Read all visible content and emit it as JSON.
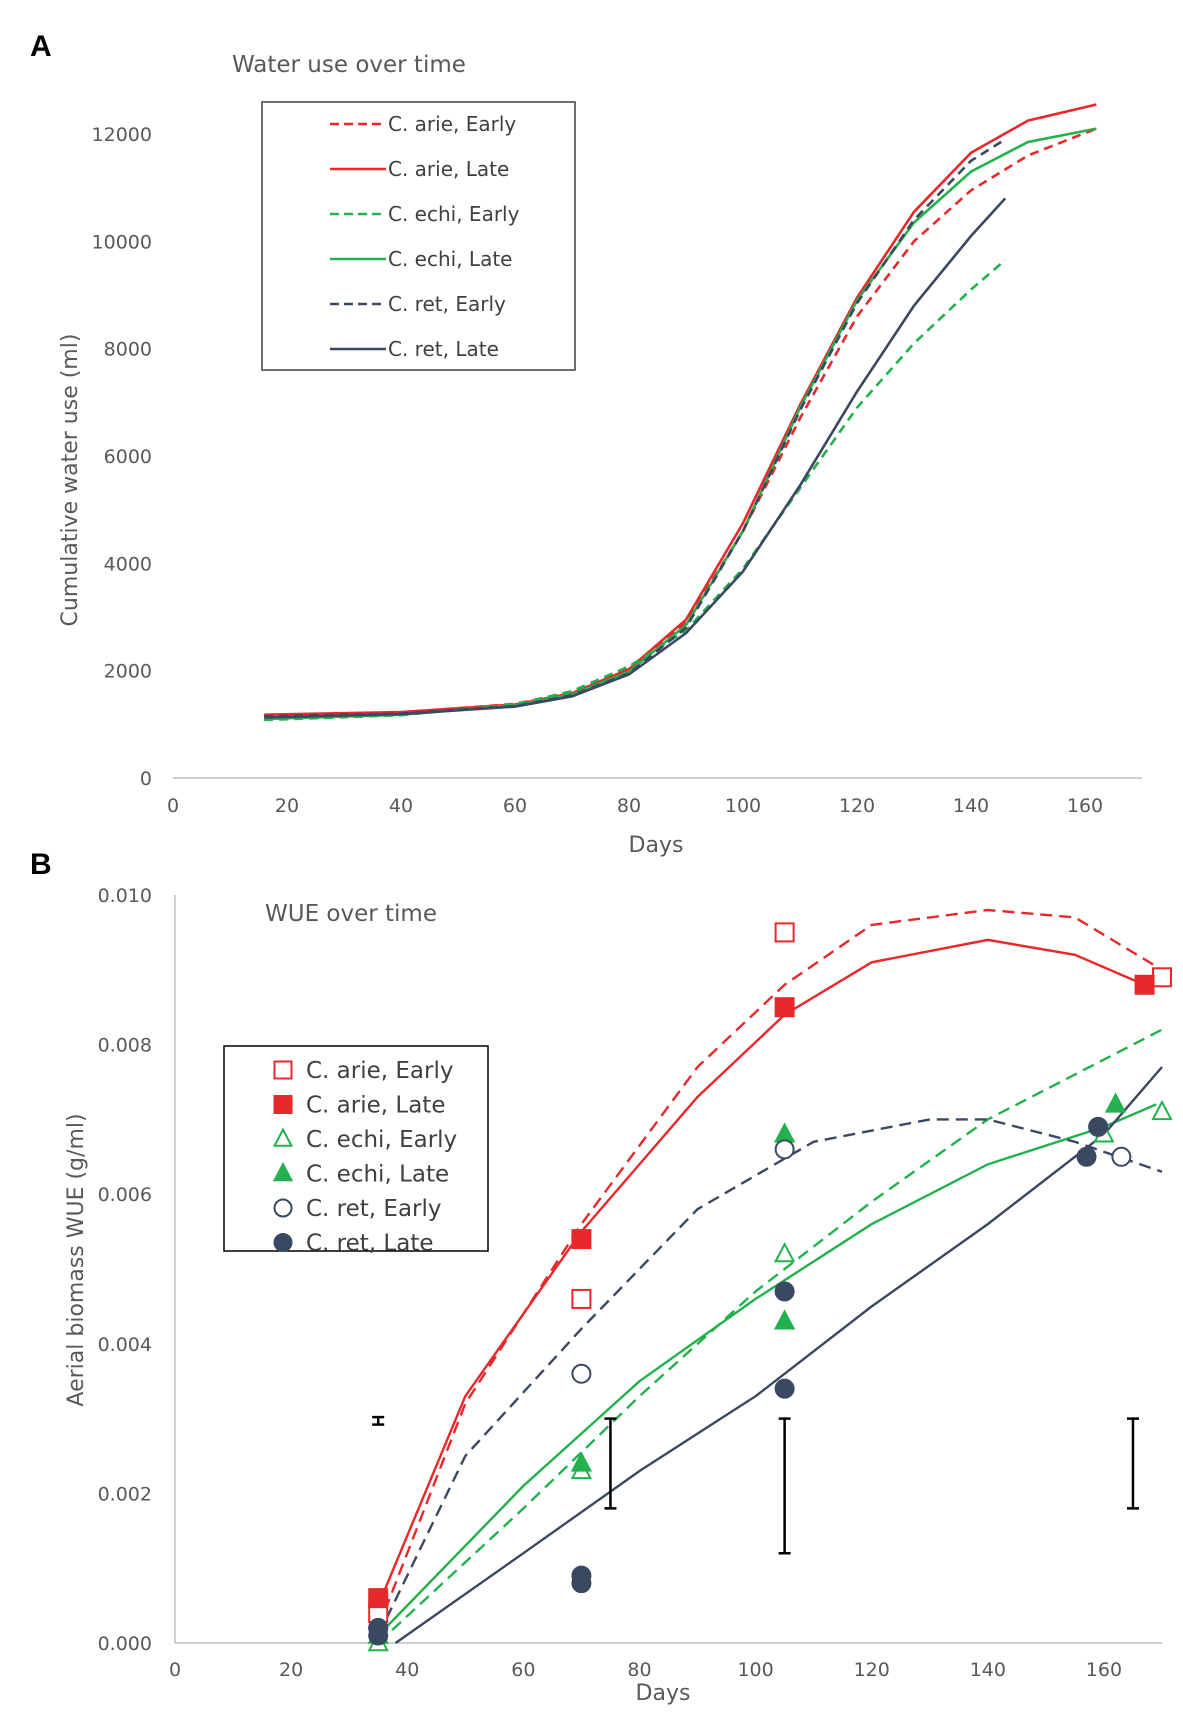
{
  "chart_data": [
    {
      "panel_label": "A",
      "type": "line",
      "title": "Water use over time",
      "xlabel": "Days",
      "ylabel": "Cumulative water use (ml)",
      "xlim": [
        0,
        170
      ],
      "ylim": [
        0,
        13000
      ],
      "xticks": [
        "0",
        "20",
        "40",
        "60",
        "80",
        "100",
        "120",
        "140",
        "160"
      ],
      "yticks": [
        "0",
        "2000",
        "4000",
        "6000",
        "8000",
        "10000",
        "12000"
      ],
      "legend_position": "top-left",
      "series": [
        {
          "name": "C. arie, Early",
          "color": "#e8282b",
          "dash": true,
          "x": [
            16,
            40,
            60,
            70,
            80,
            90,
            100,
            110,
            120,
            130,
            140,
            150,
            162
          ],
          "y": [
            1150,
            1220,
            1380,
            1600,
            2050,
            2900,
            4600,
            6700,
            8600,
            10000,
            10950,
            11600,
            12100
          ]
        },
        {
          "name": "C. arie, Late",
          "color": "#e8282b",
          "dash": false,
          "x": [
            16,
            40,
            60,
            70,
            80,
            90,
            100,
            110,
            120,
            130,
            140,
            150,
            162
          ],
          "y": [
            1180,
            1230,
            1370,
            1580,
            2030,
            2950,
            4750,
            6950,
            8950,
            10550,
            11650,
            12250,
            12550
          ]
        },
        {
          "name": "C. echi, Early",
          "color": "#22b14c",
          "dash": true,
          "x": [
            16,
            40,
            60,
            70,
            80,
            90,
            100,
            110,
            120,
            130,
            140,
            146
          ],
          "y": [
            1080,
            1170,
            1370,
            1620,
            2080,
            2750,
            3900,
            5400,
            6900,
            8100,
            9100,
            9650
          ]
        },
        {
          "name": "C. echi, Late",
          "color": "#22b14c",
          "dash": false,
          "x": [
            16,
            40,
            60,
            70,
            80,
            90,
            100,
            110,
            120,
            130,
            140,
            150,
            162
          ],
          "y": [
            1100,
            1180,
            1350,
            1560,
            1980,
            2850,
            4600,
            6900,
            8900,
            10350,
            11300,
            11850,
            12100
          ]
        },
        {
          "name": "C. ret, Early",
          "color": "#3b4862",
          "dash": true,
          "x": [
            16,
            40,
            60,
            70,
            80,
            90,
            100,
            110,
            120,
            130,
            140,
            146
          ],
          "y": [
            1150,
            1200,
            1340,
            1540,
            1950,
            2800,
            4600,
            6850,
            8850,
            10400,
            11500,
            11900
          ]
        },
        {
          "name": "C. ret, Late",
          "color": "#3b4862",
          "dash": false,
          "x": [
            16,
            40,
            60,
            70,
            80,
            90,
            100,
            110,
            120,
            130,
            140,
            146
          ],
          "y": [
            1130,
            1190,
            1330,
            1520,
            1930,
            2700,
            3850,
            5450,
            7200,
            8800,
            10100,
            10800
          ]
        }
      ]
    },
    {
      "panel_label": "B",
      "type": "scatter",
      "title": "WUE over time",
      "xlabel": "Days",
      "ylabel": "Aerial biomass WUE (g/ml)",
      "xlim": [
        0,
        170
      ],
      "ylim": [
        0,
        0.01
      ],
      "xticks": [
        "0",
        "20",
        "40",
        "60",
        "80",
        "100",
        "120",
        "140",
        "160"
      ],
      "yticks": [
        "0.000",
        "0.002",
        "0.004",
        "0.006",
        "0.008",
        "0.010"
      ],
      "legend_position": "left",
      "series": [
        {
          "name": "C. arie, Early",
          "color": "#e8282b",
          "marker": "square",
          "filled": false,
          "points": [
            [
              35,
              0.0004
            ],
            [
              70,
              0.0046
            ],
            [
              105,
              0.0095
            ],
            [
              170,
              0.0089
            ]
          ],
          "trend": {
            "dash": true,
            "x": [
              35,
              50,
              70,
              90,
              105,
              120,
              140,
              155,
              170
            ],
            "y": [
              0.0002,
              0.0032,
              0.0056,
              0.0077,
              0.0088,
              0.0096,
              0.0098,
              0.0097,
              0.009
            ]
          }
        },
        {
          "name": "C. arie, Late",
          "color": "#e8282b",
          "marker": "square",
          "filled": true,
          "points": [
            [
              35,
              0.0006
            ],
            [
              70,
              0.0054
            ],
            [
              105,
              0.0085
            ],
            [
              167,
              0.0088
            ]
          ],
          "trend": {
            "dash": false,
            "x": [
              35,
              50,
              70,
              90,
              105,
              120,
              140,
              155,
              167
            ],
            "y": [
              0.0005,
              0.0033,
              0.0055,
              0.0073,
              0.0084,
              0.0091,
              0.0094,
              0.0092,
              0.0088
            ]
          }
        },
        {
          "name": "C. echi, Early",
          "color": "#22b14c",
          "marker": "triangle",
          "filled": false,
          "points": [
            [
              35,
              0.0
            ],
            [
              70,
              0.0023
            ],
            [
              105,
              0.0052
            ],
            [
              160,
              0.0068
            ],
            [
              170,
              0.0071
            ]
          ],
          "trend": {
            "dash": true,
            "x": [
              35,
              60,
              80,
              100,
              120,
              140,
              160,
              170
            ],
            "y": [
              0.0,
              0.0018,
              0.0033,
              0.0047,
              0.0059,
              0.007,
              0.0078,
              0.0082
            ]
          }
        },
        {
          "name": "C. echi, Late",
          "color": "#22b14c",
          "marker": "triangle",
          "filled": true,
          "points": [
            [
              35,
              0.0001
            ],
            [
              70,
              0.0024
            ],
            [
              105,
              0.0068
            ],
            [
              105,
              0.0043
            ],
            [
              162,
              0.0072
            ]
          ],
          "trend": {
            "dash": false,
            "x": [
              35,
              60,
              80,
              100,
              120,
              140,
              160,
              169
            ],
            "y": [
              0.0001,
              0.0021,
              0.0035,
              0.0046,
              0.0056,
              0.0064,
              0.0069,
              0.0072
            ]
          }
        },
        {
          "name": "C. ret, Early",
          "color": "#3b4862",
          "marker": "circle",
          "filled": false,
          "points": [
            [
              35,
              0.0002
            ],
            [
              70,
              0.0036
            ],
            [
              105,
              0.0066
            ],
            [
              163,
              0.0065
            ]
          ],
          "trend": {
            "dash": true,
            "x": [
              35,
              50,
              70,
              90,
              110,
              130,
              140,
              155,
              170
            ],
            "y": [
              0.0001,
              0.0025,
              0.0042,
              0.0058,
              0.0067,
              0.007,
              0.007,
              0.0067,
              0.0063
            ]
          }
        },
        {
          "name": "C. ret, Late",
          "color": "#3b4862",
          "marker": "circle",
          "filled": true,
          "points": [
            [
              35,
              0.0002
            ],
            [
              35,
              0.0001
            ],
            [
              70,
              0.0009
            ],
            [
              70,
              0.0008
            ],
            [
              105,
              0.0047
            ],
            [
              105,
              0.0034
            ],
            [
              157,
              0.0065
            ],
            [
              159,
              0.0069
            ]
          ],
          "trend": {
            "dash": false,
            "x": [
              38,
              60,
              80,
              100,
              120,
              140,
              160,
              170
            ],
            "y": [
              0.0,
              0.0012,
              0.0023,
              0.0033,
              0.0045,
              0.0056,
              0.0068,
              0.0077
            ]
          }
        }
      ],
      "error_bars": [
        {
          "x": 35,
          "low": 0.00292,
          "high": 0.00302
        },
        {
          "x": 75,
          "low": 0.0018,
          "high": 0.003
        },
        {
          "x": 105,
          "low": 0.0012,
          "high": 0.003
        },
        {
          "x": 165,
          "low": 0.0018,
          "high": 0.003
        }
      ]
    }
  ]
}
